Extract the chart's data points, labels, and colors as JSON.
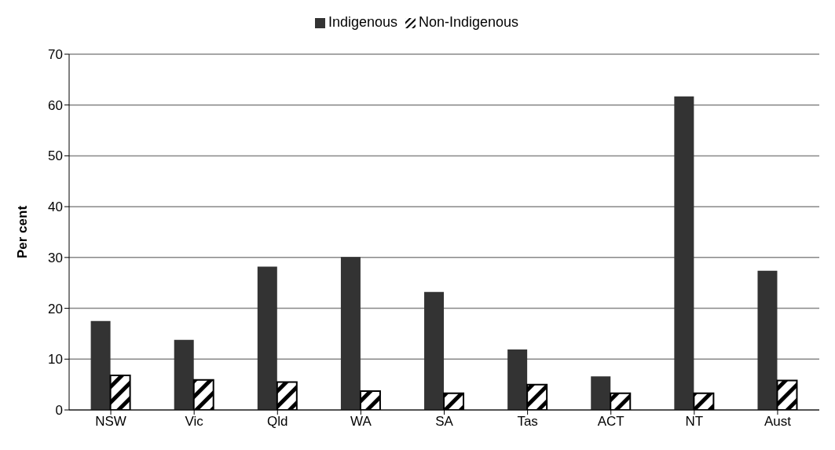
{
  "chart_data": {
    "type": "bar",
    "ylabel": "Per cent",
    "categories": [
      "NSW",
      "Vic",
      "Qld",
      "WA",
      "SA",
      "Tas",
      "ACT",
      "NT",
      "Aust"
    ],
    "series": [
      {
        "name": "Indigenous",
        "color": "#333333",
        "values": [
          17.5,
          13.8,
          28.2,
          30.1,
          23.2,
          11.9,
          6.6,
          61.7,
          27.4
        ]
      },
      {
        "name": "Non-Indigenous",
        "color": "#000000",
        "values": [
          6.8,
          5.9,
          5.5,
          3.7,
          3.3,
          5.0,
          3.3,
          3.3,
          5.8
        ]
      }
    ],
    "ylim": [
      0,
      70
    ],
    "yticks": [
      0,
      10,
      20,
      30,
      40,
      50,
      60,
      70
    ],
    "grid": "y",
    "legend": "top"
  }
}
